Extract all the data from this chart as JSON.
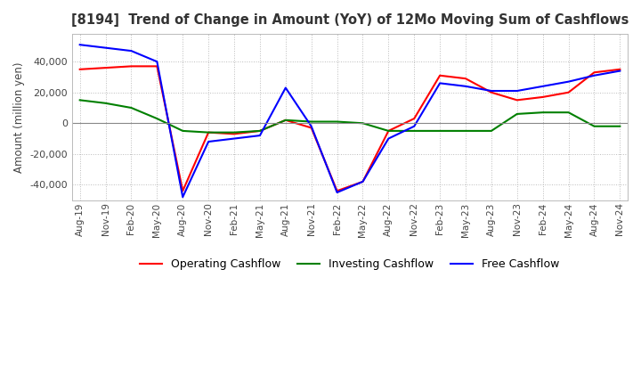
{
  "title": "[8194]  Trend of Change in Amount (YoY) of 12Mo Moving Sum of Cashflows",
  "ylabel": "Amount (million yen)",
  "ylim": [
    -50000,
    58000
  ],
  "yticks": [
    -40000,
    -20000,
    0,
    20000,
    40000
  ],
  "background_color": "#ffffff",
  "grid_color": "#bbbbbb",
  "labels": [
    "Aug-19",
    "Nov-19",
    "Feb-20",
    "May-20",
    "Aug-20",
    "Nov-20",
    "Feb-21",
    "May-21",
    "Aug-21",
    "Nov-21",
    "Feb-22",
    "May-22",
    "Aug-22",
    "Nov-22",
    "Feb-23",
    "May-23",
    "Aug-23",
    "Nov-23",
    "Feb-24",
    "May-24",
    "Aug-24",
    "Nov-24"
  ],
  "operating": [
    35000,
    36000,
    37000,
    37000,
    -44000,
    -6000,
    -7000,
    -5000,
    2000,
    -3000,
    -44000,
    -38000,
    -5000,
    3000,
    31000,
    29000,
    20000,
    15000,
    17000,
    20000,
    33000,
    35000
  ],
  "investing": [
    15000,
    13000,
    10000,
    3000,
    -5000,
    -6000,
    -6000,
    -5000,
    2000,
    1000,
    1000,
    0,
    -5000,
    -5000,
    -5000,
    -5000,
    -5000,
    6000,
    7000,
    7000,
    -2000,
    -2000
  ],
  "free": [
    51000,
    49000,
    47000,
    40000,
    -48000,
    -12000,
    -10000,
    -8000,
    23000,
    -2000,
    -45000,
    -38000,
    -10000,
    -2000,
    26000,
    24000,
    21000,
    21000,
    24000,
    27000,
    31000,
    34000
  ],
  "operating_color": "#ff0000",
  "investing_color": "#008000",
  "free_color": "#0000ff",
  "legend_labels": [
    "Operating Cashflow",
    "Investing Cashflow",
    "Free Cashflow"
  ]
}
